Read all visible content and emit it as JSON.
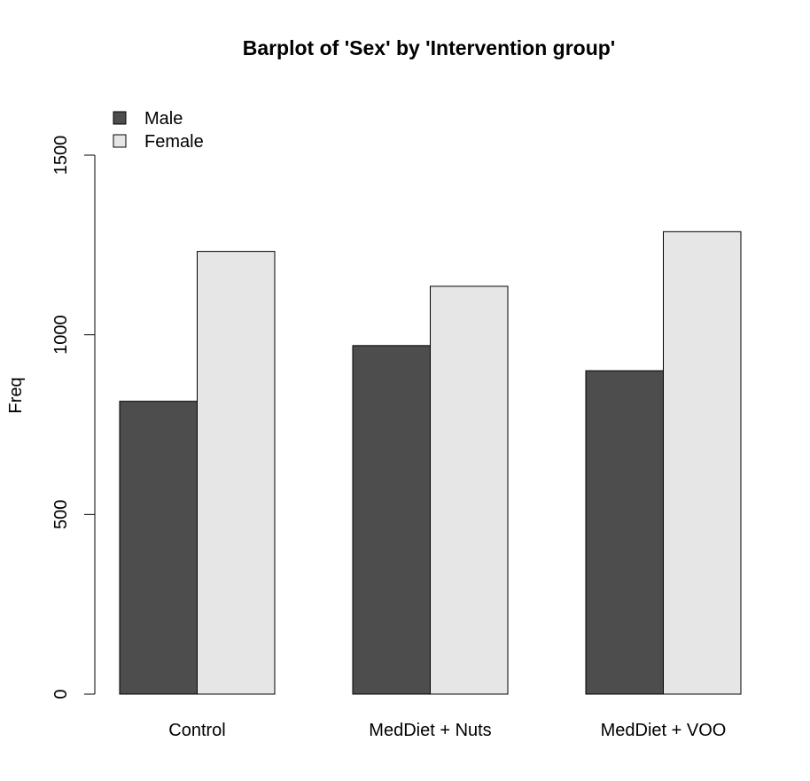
{
  "chart_data": {
    "type": "bar",
    "title": "Barplot of 'Sex' by 'Intervention group'",
    "xlabel": "",
    "ylabel": "Freq",
    "categories": [
      "Control",
      "MedDiet + Nuts",
      "MedDiet + VOO"
    ],
    "series": [
      {
        "name": "Male",
        "values": [
          815,
          970,
          900
        ],
        "color": "#4d4d4d"
      },
      {
        "name": "Female",
        "values": [
          1232,
          1135,
          1287
        ],
        "color": "#e6e6e6"
      }
    ],
    "ylim": [
      0,
      1500
    ],
    "yticks": [
      "0",
      "500",
      "1000",
      "1500"
    ],
    "grid": false,
    "legend_position": "top-left"
  }
}
